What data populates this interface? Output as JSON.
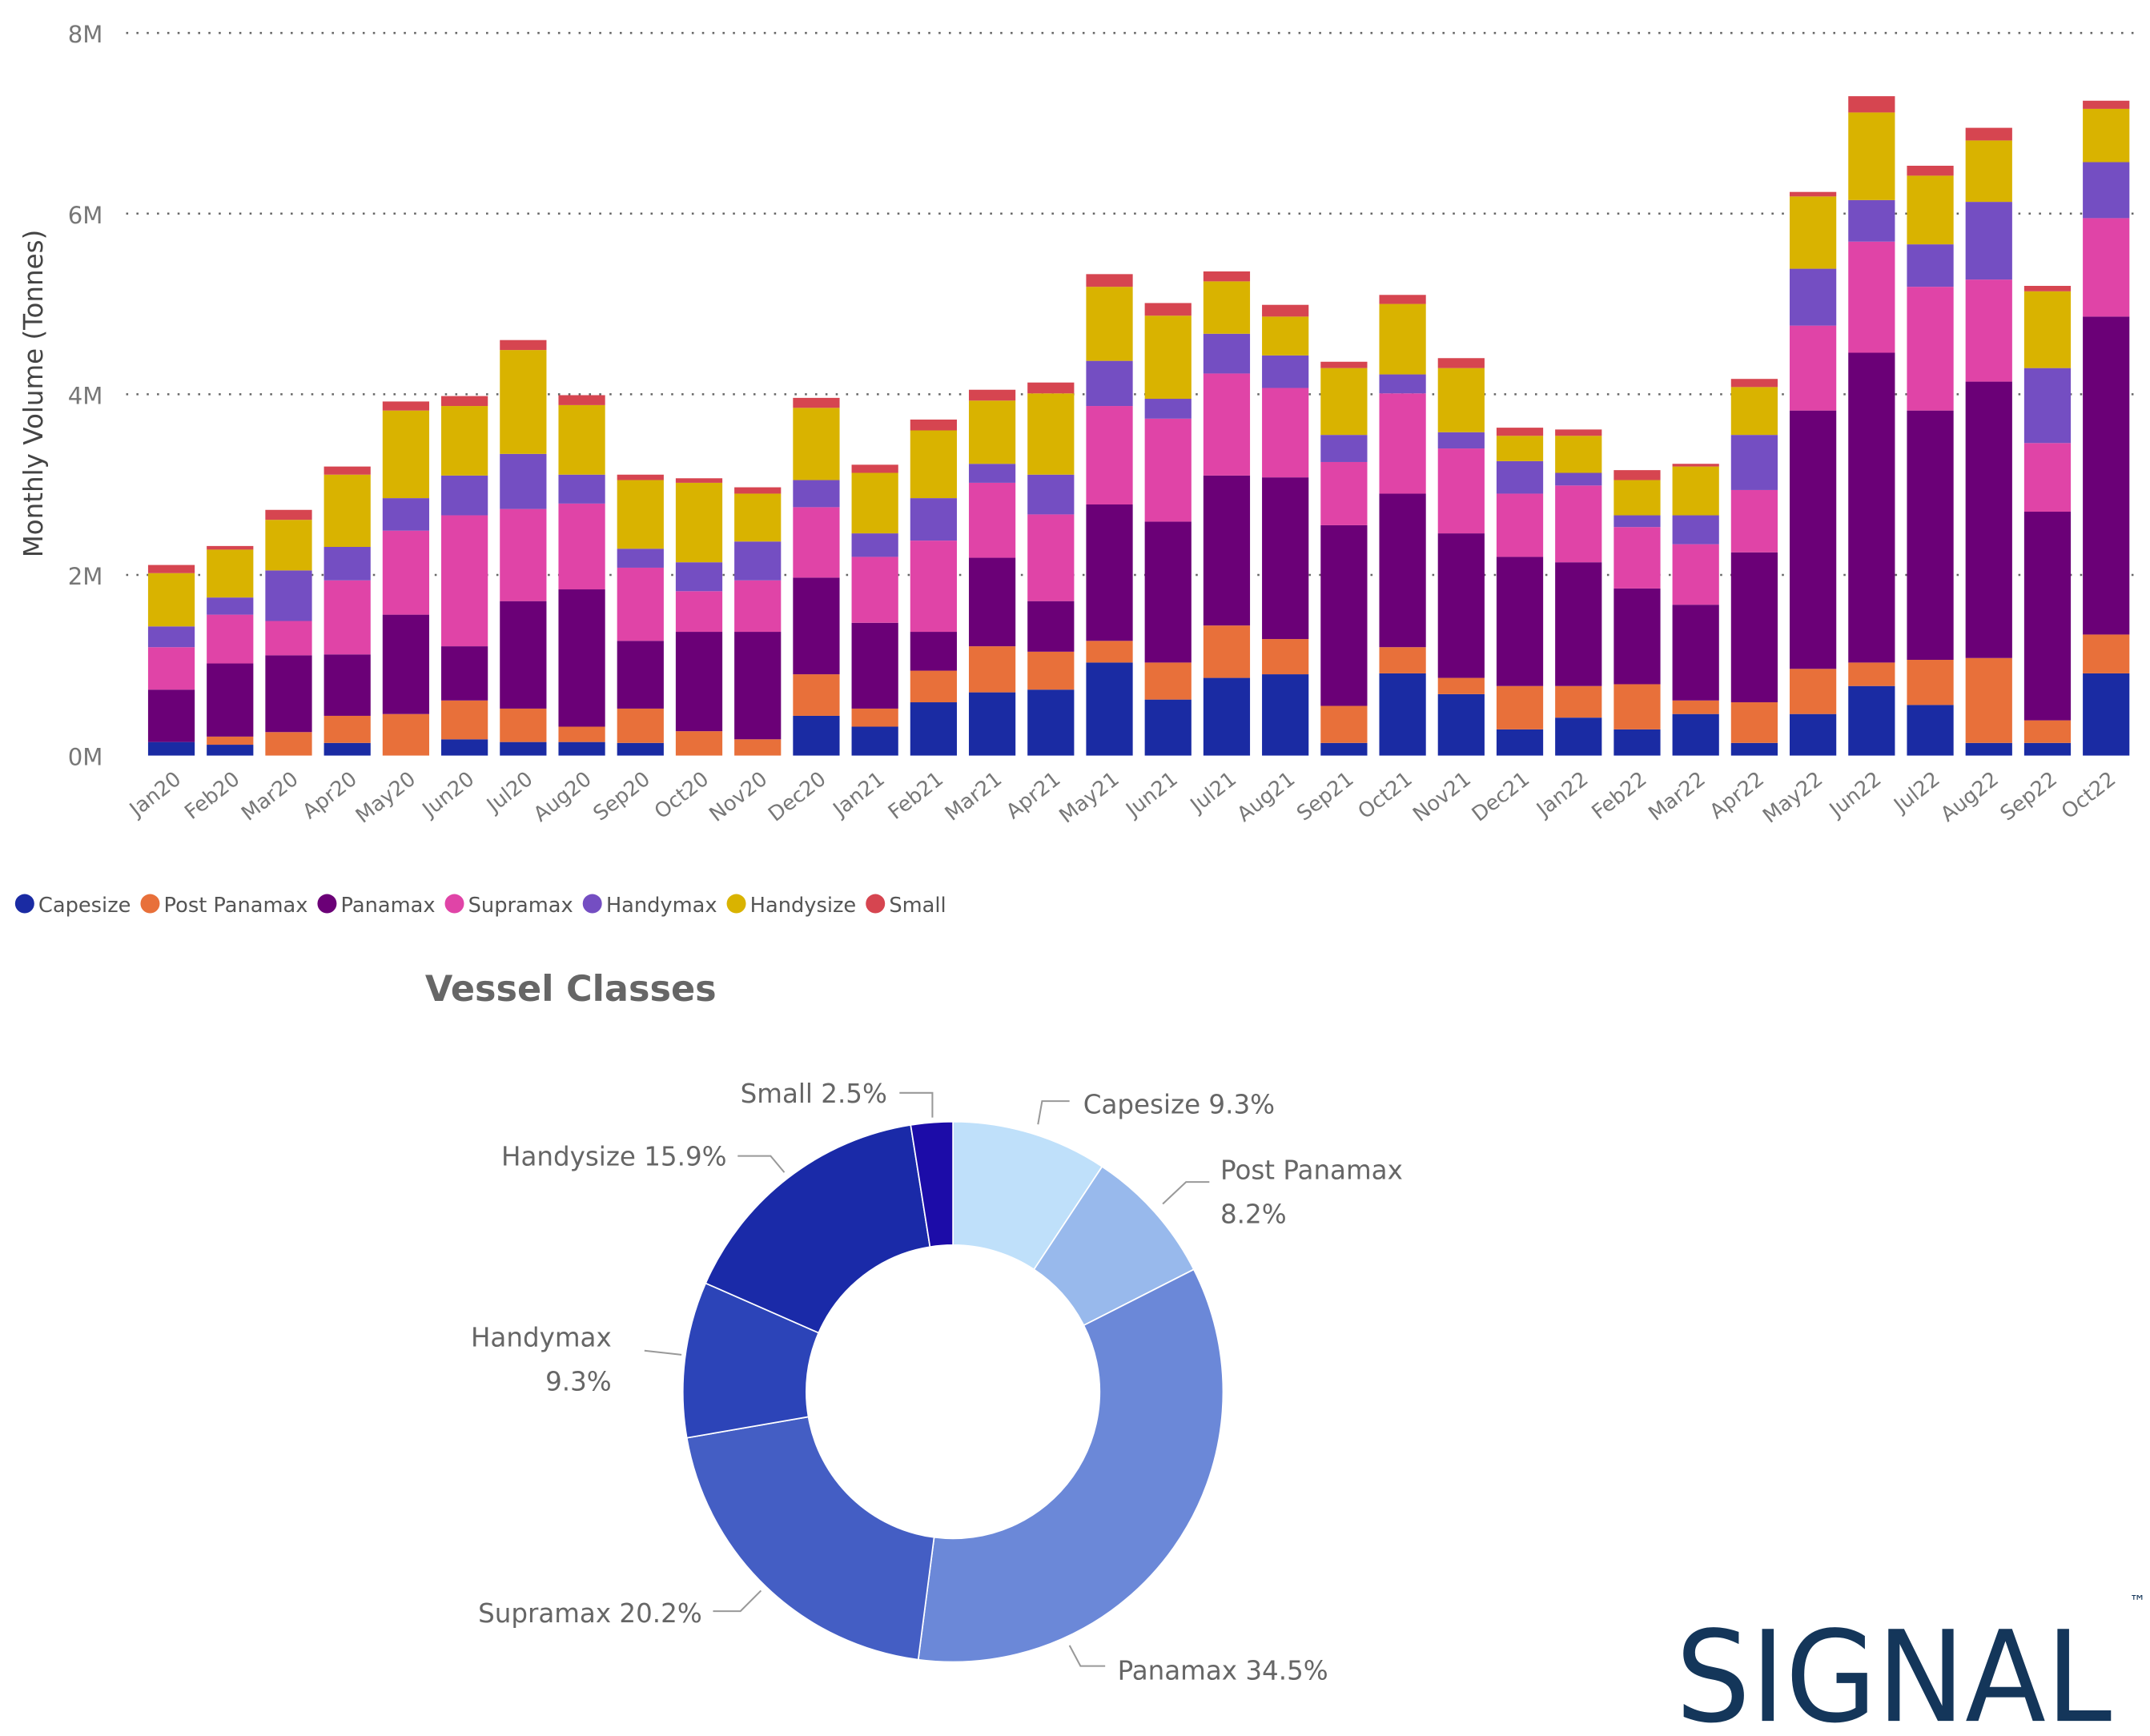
{
  "chart_data": [
    {
      "type": "bar",
      "stacked": true,
      "title": "",
      "xlabel": "",
      "ylabel": "Monthly Volume (Tonnes)",
      "ylim": [
        0,
        8000000
      ],
      "yticks": [
        "0M",
        "2M",
        "4M",
        "6M",
        "8M"
      ],
      "ytick_values": [
        0,
        2,
        4,
        6,
        8
      ],
      "unit": "millions of tonnes",
      "grid": true,
      "legend_position": "bottom-left",
      "categories": [
        "Jan20",
        "Feb20",
        "Mar20",
        "Apr20",
        "May20",
        "Jun20",
        "Jul20",
        "Aug20",
        "Sep20",
        "Oct20",
        "Nov20",
        "Dec20",
        "Jan21",
        "Feb21",
        "Mar21",
        "Apr21",
        "May21",
        "Jun21",
        "Jul21",
        "Aug21",
        "Sep21",
        "Oct21",
        "Nov21",
        "Dec21",
        "Jan22",
        "Feb22",
        "Mar22",
        "Apr22",
        "May22",
        "Jun22",
        "Jul22",
        "Aug22",
        "Sep22",
        "Oct22"
      ],
      "series": [
        {
          "name": "Capesize",
          "color": "#1a2ba3",
          "values": [
            0.15,
            0.12,
            0.0,
            0.14,
            0.0,
            0.18,
            0.15,
            0.15,
            0.14,
            0.0,
            0.0,
            0.44,
            0.32,
            0.59,
            0.7,
            0.73,
            1.03,
            0.62,
            0.86,
            0.9,
            0.14,
            0.91,
            0.68,
            0.29,
            0.42,
            0.29,
            0.46,
            0.14,
            0.46,
            0.77,
            0.56,
            0.14,
            0.14,
            0.91
          ]
        },
        {
          "name": "Post Panamax",
          "color": "#e8703a",
          "values": [
            0.0,
            0.09,
            0.26,
            0.3,
            0.46,
            0.43,
            0.37,
            0.17,
            0.38,
            0.27,
            0.18,
            0.46,
            0.2,
            0.35,
            0.51,
            0.42,
            0.24,
            0.41,
            0.58,
            0.39,
            0.41,
            0.29,
            0.18,
            0.48,
            0.35,
            0.5,
            0.15,
            0.45,
            0.5,
            0.26,
            0.5,
            0.94,
            0.25,
            0.43
          ]
        },
        {
          "name": "Panamax",
          "color": "#6b0077",
          "values": [
            0.58,
            0.81,
            0.85,
            0.68,
            1.1,
            0.6,
            1.19,
            1.52,
            0.75,
            1.1,
            1.19,
            1.07,
            0.95,
            0.43,
            0.98,
            0.56,
            1.51,
            1.56,
            1.66,
            1.79,
            2.0,
            1.7,
            1.6,
            1.43,
            1.37,
            1.06,
            1.06,
            1.66,
            2.86,
            3.43,
            2.76,
            3.06,
            2.31,
            3.52
          ]
        },
        {
          "name": "Supramax",
          "color": "#e044a7",
          "values": [
            0.47,
            0.54,
            0.38,
            0.82,
            0.93,
            1.45,
            1.02,
            0.95,
            0.81,
            0.45,
            0.57,
            0.78,
            0.73,
            1.01,
            0.83,
            0.96,
            1.09,
            1.14,
            1.13,
            0.99,
            0.7,
            1.11,
            0.94,
            0.7,
            0.85,
            0.68,
            0.67,
            0.69,
            0.94,
            1.23,
            1.37,
            1.13,
            0.76,
            1.09
          ]
        },
        {
          "name": "Handymax",
          "color": "#744ec2",
          "values": [
            0.23,
            0.19,
            0.56,
            0.37,
            0.36,
            0.44,
            0.61,
            0.32,
            0.21,
            0.32,
            0.43,
            0.3,
            0.26,
            0.47,
            0.21,
            0.44,
            0.5,
            0.22,
            0.44,
            0.36,
            0.3,
            0.21,
            0.18,
            0.36,
            0.14,
            0.13,
            0.32,
            0.61,
            0.63,
            0.46,
            0.47,
            0.86,
            0.83,
            0.62
          ]
        },
        {
          "name": "Handysize",
          "color": "#d9b300",
          "values": [
            0.59,
            0.53,
            0.56,
            0.8,
            0.97,
            0.77,
            1.15,
            0.77,
            0.76,
            0.88,
            0.53,
            0.8,
            0.67,
            0.75,
            0.7,
            0.9,
            0.82,
            0.92,
            0.58,
            0.43,
            0.74,
            0.78,
            0.71,
            0.28,
            0.41,
            0.39,
            0.54,
            0.53,
            0.8,
            0.97,
            0.76,
            0.68,
            0.85,
            0.59
          ]
        },
        {
          "name": "Small",
          "color": "#d64550",
          "values": [
            0.09,
            0.04,
            0.11,
            0.09,
            0.1,
            0.11,
            0.11,
            0.11,
            0.06,
            0.05,
            0.07,
            0.11,
            0.09,
            0.12,
            0.12,
            0.12,
            0.14,
            0.14,
            0.11,
            0.13,
            0.07,
            0.1,
            0.11,
            0.09,
            0.07,
            0.11,
            0.03,
            0.09,
            0.05,
            0.18,
            0.11,
            0.14,
            0.06,
            0.09
          ]
        }
      ]
    },
    {
      "type": "pie",
      "donut": true,
      "title": "Vessel Classes",
      "slices": [
        {
          "name": "Capesize",
          "value": 9.3,
          "label": "Capesize 9.3%",
          "color": "#bfe0fa"
        },
        {
          "name": "Post Panamax",
          "value": 8.2,
          "label": [
            "Post Panamax",
            "8.2%"
          ],
          "color": "#98b9ec"
        },
        {
          "name": "Panamax",
          "value": 34.5,
          "label": "Panamax 34.5%",
          "color": "#6b88d8"
        },
        {
          "name": "Supramax",
          "value": 20.2,
          "label": "Supramax 20.2%",
          "color": "#445ec4"
        },
        {
          "name": "Handymax",
          "value": 9.3,
          "label": [
            "Handymax",
            "9.3%"
          ],
          "color": "#2c44b8"
        },
        {
          "name": "Handysize",
          "value": 15.9,
          "label": "Handysize 15.9%",
          "color": "#1a2aa8"
        },
        {
          "name": "Small",
          "value": 2.5,
          "label": "Small 2.5%",
          "color": "#1c0ca8"
        }
      ]
    }
  ],
  "logo": {
    "text": "SIGNAL",
    "tm": "™",
    "color": "#14365a"
  }
}
